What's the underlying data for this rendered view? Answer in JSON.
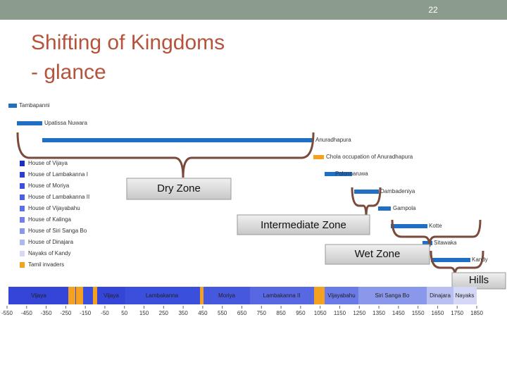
{
  "header": {
    "slide_number": "22",
    "title_line1": "Shifting of Kingdoms",
    "title_line2": "- glance"
  },
  "capitals": [
    "Tambapanni",
    "Upatissa Nuwara",
    "Anuradhapura",
    "Chola occupation of Anuradhapura",
    "Polonnaruwa",
    "Dambadeniya",
    "Gampola",
    "Kotte",
    "Sitawaka",
    "Kandy"
  ],
  "legend": [
    "House of Vijaya",
    "House of Lambakanna I",
    "House of Moriya",
    "House of Lambakanna II",
    "House of Vijayabahu",
    "House of Kalinga",
    "House of Siri Sanga Bo",
    "House of Dinajara",
    "Nayaks of Kandy",
    "Tamil invaders"
  ],
  "zones": [
    "Dry Zone",
    "Intermediate Zone",
    "Wet Zone",
    "Hills"
  ],
  "dynasties": [
    "Vijaya",
    "Vijaya",
    "Lambakanna",
    "Moriya",
    "Lambakanna II",
    "Vijayabahu",
    "Siri Sanga Bo",
    "Dinajara",
    "Nayaks"
  ],
  "axis": [
    "-550",
    "-450",
    "-350",
    "-250",
    "-150",
    "-50",
    "50",
    "150",
    "250",
    "350",
    "450",
    "550",
    "650",
    "750",
    "850",
    "950",
    "1050",
    "1150",
    "1250",
    "1350",
    "1450",
    "1550",
    "1650",
    "1750",
    "1850"
  ]
}
